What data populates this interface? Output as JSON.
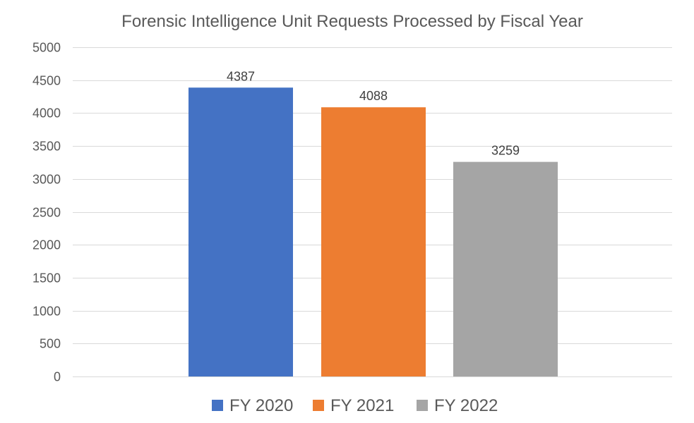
{
  "chart_data": {
    "type": "bar",
    "title": "Forensic Intelligence Unit Requests Processed by Fiscal Year",
    "xlabel": "",
    "ylabel": "",
    "ylim": [
      0,
      5000
    ],
    "yticks": [
      0,
      500,
      1000,
      1500,
      2000,
      2500,
      3000,
      3500,
      4000,
      4500,
      5000
    ],
    "grid": true,
    "legend_position": "bottom",
    "series": [
      {
        "name": "FY 2020",
        "value": 4387,
        "color": "#4472C4"
      },
      {
        "name": "FY 2021",
        "value": 4088,
        "color": "#ED7D31"
      },
      {
        "name": "FY 2022",
        "value": 3259,
        "color": "#A5A5A5"
      }
    ]
  }
}
